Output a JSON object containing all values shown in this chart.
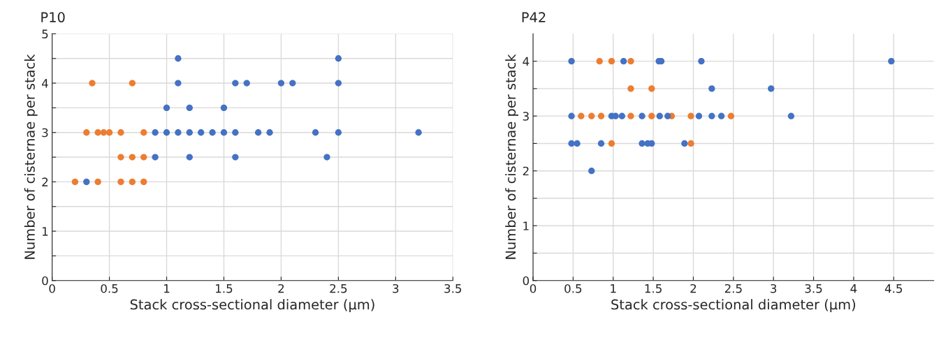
{
  "chart_data": [
    {
      "type": "scatter",
      "title": "P10",
      "xlabel": "Stack cross-sectional diameter (µm)",
      "ylabel": "Number of cisternae per stack",
      "xlim": [
        0,
        3.5
      ],
      "xticks": [
        0,
        0.5,
        1,
        1.5,
        2,
        2.5,
        3,
        3.5
      ],
      "ylim": [
        0,
        5
      ],
      "yticks": [
        0,
        {
          "value": 0.5,
          "label": null
        },
        1,
        {
          "value": 1.5,
          "label": null
        },
        2,
        {
          "value": 2.5,
          "label": null
        },
        3,
        {
          "value": 3.5,
          "label": null
        },
        4,
        {
          "value": 4.5,
          "label": null
        },
        5
      ],
      "grid": true,
      "marker": "circle",
      "series": [
        {
          "color": "#ed7d31",
          "x": [
            0.2,
            0.4,
            0.6,
            0.7,
            0.8,
            0.6,
            0.7,
            0.8,
            0.3,
            0.4,
            0.45,
            0.5,
            0.6,
            0.8,
            0.35,
            0.7
          ],
          "values": [
            2,
            2,
            2,
            2,
            2,
            2.5,
            2.5,
            2.5,
            3,
            3,
            3,
            3,
            3,
            3,
            4,
            4
          ]
        },
        {
          "color": "#4472c4",
          "x": [
            0.3,
            0.9,
            1.2,
            1.6,
            2.4,
            0.9,
            1.0,
            1.1,
            1.2,
            1.3,
            1.4,
            1.5,
            1.6,
            1.8,
            1.9,
            2.3,
            2.5,
            3.2,
            1.0,
            1.2,
            1.5,
            1.1,
            1.6,
            1.7,
            2.0,
            2.1,
            2.5,
            1.1,
            2.5
          ],
          "values": [
            2,
            2.5,
            2.5,
            2.5,
            2.5,
            3,
            3,
            3,
            3,
            3,
            3,
            3,
            3,
            3,
            3,
            3,
            3,
            3,
            3.5,
            3.5,
            3.5,
            4,
            4,
            4,
            4,
            4,
            4,
            4.5,
            4.5
          ]
        }
      ]
    },
    {
      "type": "scatter",
      "title": "P42",
      "xlabel": "Stack cross-sectional diameter (µm)",
      "ylabel": "Number of cisternae per stack",
      "xlim": [
        0,
        5
      ],
      "xticks": [
        0,
        0.5,
        1,
        1.5,
        2,
        2.5,
        3,
        3.5,
        4,
        4.5
      ],
      "ylim": [
        0,
        4.5
      ],
      "yticks": [
        0,
        {
          "value": 0.5,
          "label": null
        },
        1,
        {
          "value": 1.5,
          "label": null
        },
        2,
        {
          "value": 2.5,
          "label": null
        },
        3,
        {
          "value": 3.5,
          "label": null
        },
        4
      ],
      "grid": true,
      "marker": "circle",
      "series": [
        {
          "color": "#ed7d31",
          "x": [
            0.83,
            0.98,
            1.22,
            1.22,
            1.48,
            0.6,
            0.73,
            0.85,
            1.22,
            1.48,
            1.73,
            1.97,
            2.47,
            0.98,
            1.97
          ],
          "values": [
            4,
            4,
            4,
            3.5,
            3.5,
            3,
            3,
            3,
            3,
            3,
            3,
            3,
            3,
            2.5,
            2.5
          ]
        },
        {
          "color": "#4472c4",
          "x": [
            0.48,
            1.13,
            1.57,
            1.6,
            2.1,
            4.47,
            2.23,
            2.97,
            0.48,
            0.98,
            1.03,
            1.11,
            1.36,
            1.58,
            1.68,
            2.07,
            2.23,
            2.35,
            3.22,
            0.48,
            0.55,
            0.85,
            1.36,
            1.43,
            1.48,
            1.89,
            0.73
          ],
          "values": [
            4,
            4,
            4,
            4,
            4,
            4,
            3.5,
            3.5,
            3,
            3,
            3,
            3,
            3,
            3,
            3,
            3,
            3,
            3,
            3,
            2.5,
            2.5,
            2.5,
            2.5,
            2.5,
            2.5,
            2.5,
            2
          ]
        }
      ]
    }
  ]
}
